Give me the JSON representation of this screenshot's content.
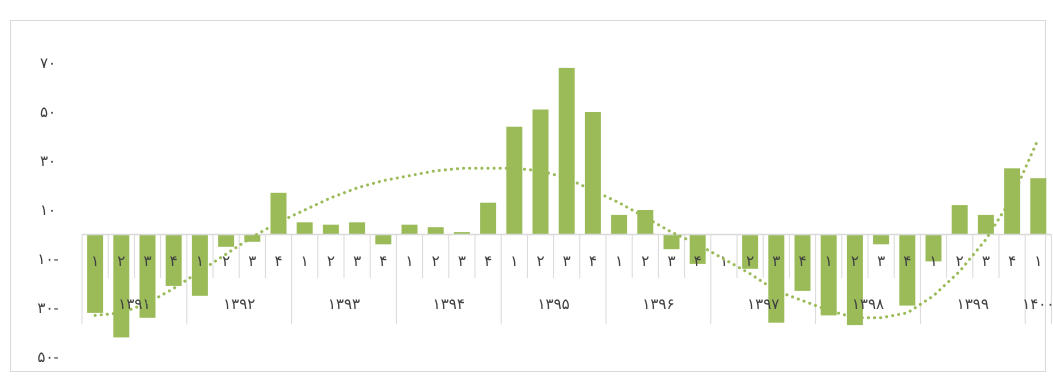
{
  "title": "",
  "chart_data": {
    "type": "bar",
    "y_ticks": [
      "۷۰",
      "۵۰",
      "۳۰",
      "۱۰",
      "۱۰-",
      "۳۰-",
      "۵۰-"
    ],
    "y_tick_values": [
      70,
      50,
      30,
      10,
      -10,
      -30,
      -50
    ],
    "ylim": [
      -50,
      70
    ],
    "quarter_labels": [
      "۱",
      "۲",
      "۳",
      "۴",
      "۱",
      "۲",
      "۳",
      "۴",
      "۱",
      "۲",
      "۳",
      "۴",
      "۱",
      "۲",
      "۳",
      "۴",
      "۱",
      "۲",
      "۳",
      "۴",
      "۱",
      "۲",
      "۳",
      "۴",
      "۱",
      "۲",
      "۳",
      "۴",
      "۱",
      "۲",
      "۳",
      "۴",
      "۱",
      "۲",
      "۳",
      "۴",
      "۱"
    ],
    "years": [
      {
        "label": "۱۳۹۱",
        "quarters": 4
      },
      {
        "label": "۱۳۹۲",
        "quarters": 4
      },
      {
        "label": "۱۳۹۳",
        "quarters": 4
      },
      {
        "label": "۱۳۹۴",
        "quarters": 4
      },
      {
        "label": "۱۳۹۵",
        "quarters": 4
      },
      {
        "label": "۱۳۹۶",
        "quarters": 4
      },
      {
        "label": "۱۳۹۷",
        "quarters": 4
      },
      {
        "label": "۱۳۹۸",
        "quarters": 4
      },
      {
        "label": "۱۳۹۹",
        "quarters": 4
      },
      {
        "label": "۱۴۰۰",
        "quarters": 1
      }
    ],
    "values": [
      -32,
      -42,
      -34,
      -21,
      -25,
      -5,
      -3,
      17,
      5,
      4,
      5,
      -4,
      4,
      3,
      1,
      13,
      44,
      51,
      68,
      50,
      8,
      10,
      -6,
      -12,
      0,
      -14,
      -36,
      -23,
      -33,
      -37,
      -4,
      -29,
      -11,
      12,
      8,
      27,
      23
    ],
    "trend": [
      -33,
      -32,
      -28,
      -22,
      -15,
      -8,
      -1,
      5,
      10,
      15,
      19,
      22,
      24,
      26,
      27,
      27,
      27,
      26,
      23,
      18,
      13,
      7,
      1,
      -4,
      -10,
      -16,
      -23,
      -27,
      -31,
      -34,
      -34,
      -32,
      -25,
      -15,
      -2,
      15,
      39
    ],
    "colors": {
      "bar": "#9bbb59",
      "trend": "#9bbb59",
      "axis": "#d9d9d9",
      "text": "#404040"
    },
    "trend_style": "dotted",
    "grid": false,
    "legend": "none"
  }
}
